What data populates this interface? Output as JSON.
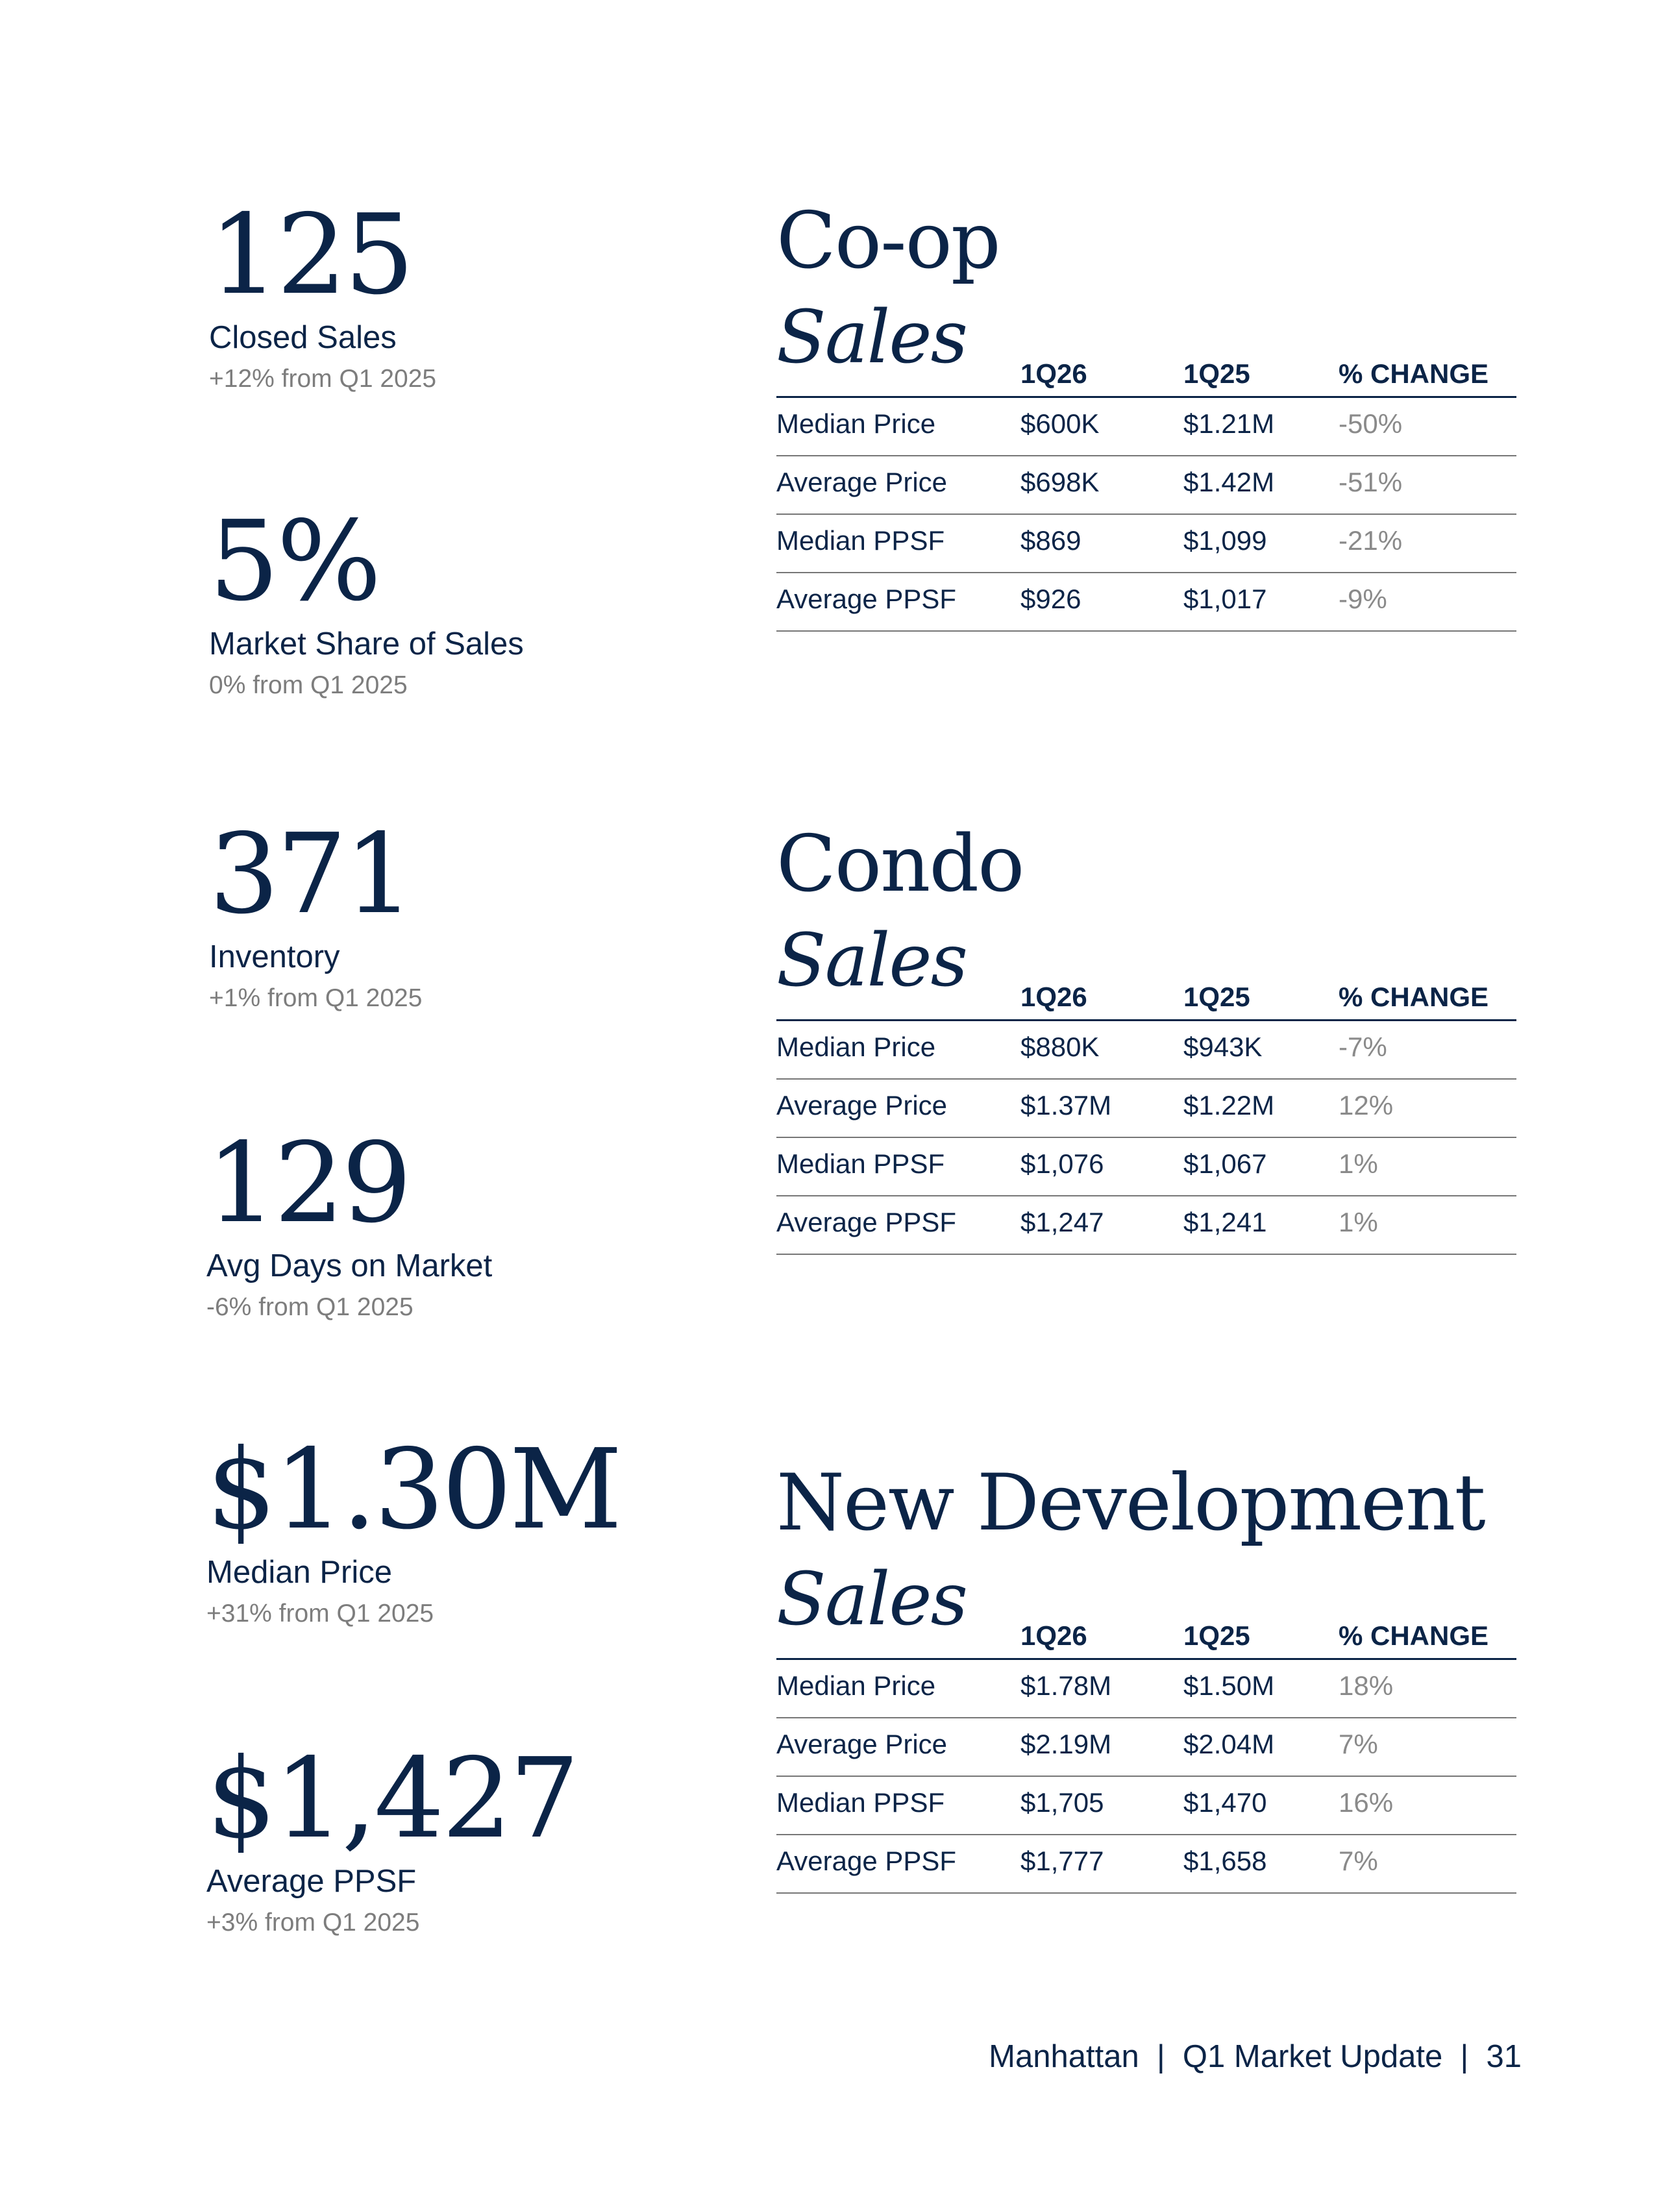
{
  "stats": [
    {
      "value": "125",
      "label": "Closed Sales",
      "change": "+12% from Q1 2025"
    },
    {
      "value": "5%",
      "label": "Market Share of Sales",
      "change": "0% from Q1 2025"
    },
    {
      "value": "371",
      "label": "Inventory",
      "change": "+1% from Q1 2025"
    },
    {
      "value": "129",
      "label": "Avg Days on Market",
      "change": "-6% from Q1 2025"
    },
    {
      "value": "$1.30M",
      "label": "Median Price",
      "change": "+31% from Q1 2025"
    },
    {
      "value": "$1,427",
      "label": "Average PPSF",
      "change": "+3% from Q1 2025"
    }
  ],
  "sections": [
    {
      "title": "Co-op",
      "subtitle": "Sales",
      "headers": [
        "1Q26",
        "1Q25",
        "% CHANGE"
      ],
      "rows": [
        {
          "metric": "Median Price",
          "q126": "$600K",
          "q125": "$1.21M",
          "change": "-50%"
        },
        {
          "metric": "Average Price",
          "q126": "$698K",
          "q125": "$1.42M",
          "change": "-51%"
        },
        {
          "metric": "Median PPSF",
          "q126": "$869",
          "q125": "$1,099",
          "change": "-21%"
        },
        {
          "metric": "Average PPSF",
          "q126": "$926",
          "q125": "$1,017",
          "change": "-9%"
        }
      ]
    },
    {
      "title": "Condo",
      "subtitle": "Sales",
      "headers": [
        "1Q26",
        "1Q25",
        "% CHANGE"
      ],
      "rows": [
        {
          "metric": "Median Price",
          "q126": "$880K",
          "q125": "$943K",
          "change": "-7%"
        },
        {
          "metric": "Average Price",
          "q126": "$1.37M",
          "q125": "$1.22M",
          "change": "12%"
        },
        {
          "metric": "Median PPSF",
          "q126": "$1,076",
          "q125": "$1,067",
          "change": "1%"
        },
        {
          "metric": "Average PPSF",
          "q126": "$1,247",
          "q125": "$1,241",
          "change": "1%"
        }
      ]
    },
    {
      "title": "New Development",
      "subtitle": "Sales",
      "headers": [
        "1Q26",
        "1Q25",
        "% CHANGE"
      ],
      "rows": [
        {
          "metric": "Median Price",
          "q126": "$1.78M",
          "q125": "$1.50M",
          "change": "18%"
        },
        {
          "metric": "Average Price",
          "q126": "$2.19M",
          "q125": "$2.04M",
          "change": "7%"
        },
        {
          "metric": "Median PPSF",
          "q126": "$1,705",
          "q125": "$1,470",
          "change": "16%"
        },
        {
          "metric": "Average PPSF",
          "q126": "$1,777",
          "q125": "$1,658",
          "change": "7%"
        }
      ]
    }
  ],
  "footer": {
    "market": "Manhattan",
    "separator": "|",
    "report": "Q1 Market Update",
    "page": "31"
  }
}
